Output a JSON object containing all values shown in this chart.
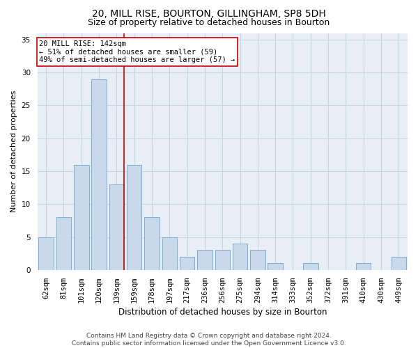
{
  "title1": "20, MILL RISE, BOURTON, GILLINGHAM, SP8 5DH",
  "title2": "Size of property relative to detached houses in Bourton",
  "xlabel": "Distribution of detached houses by size in Bourton",
  "ylabel": "Number of detached properties",
  "categories": [
    "62sqm",
    "81sqm",
    "101sqm",
    "120sqm",
    "139sqm",
    "159sqm",
    "178sqm",
    "197sqm",
    "217sqm",
    "236sqm",
    "256sqm",
    "275sqm",
    "294sqm",
    "314sqm",
    "333sqm",
    "352sqm",
    "372sqm",
    "391sqm",
    "410sqm",
    "430sqm",
    "449sqm"
  ],
  "values": [
    5,
    8,
    16,
    29,
    13,
    16,
    8,
    5,
    2,
    3,
    3,
    4,
    3,
    1,
    0,
    1,
    0,
    0,
    1,
    0,
    2
  ],
  "bar_color": "#c9d9eb",
  "bar_edge_color": "#7bafd4",
  "vline_bin_index": 4,
  "vline_color": "#cc0000",
  "annotation_line1": "20 MILL RISE: 142sqm",
  "annotation_line2": "← 51% of detached houses are smaller (59)",
  "annotation_line3": "49% of semi-detached houses are larger (57) →",
  "annotation_box_facecolor": "#ffffff",
  "annotation_box_edgecolor": "#cc0000",
  "ylim": [
    0,
    36
  ],
  "yticks": [
    0,
    5,
    10,
    15,
    20,
    25,
    30,
    35
  ],
  "grid_color": "#c8d4e4",
  "plot_bg_color": "#e8eef5",
  "footer_text": "Contains HM Land Registry data © Crown copyright and database right 2024.\nContains public sector information licensed under the Open Government Licence v3.0.",
  "title1_fontsize": 10,
  "title2_fontsize": 9,
  "xlabel_fontsize": 8.5,
  "ylabel_fontsize": 8,
  "tick_fontsize": 7.5,
  "annotation_fontsize": 7.5,
  "footer_fontsize": 6.5
}
